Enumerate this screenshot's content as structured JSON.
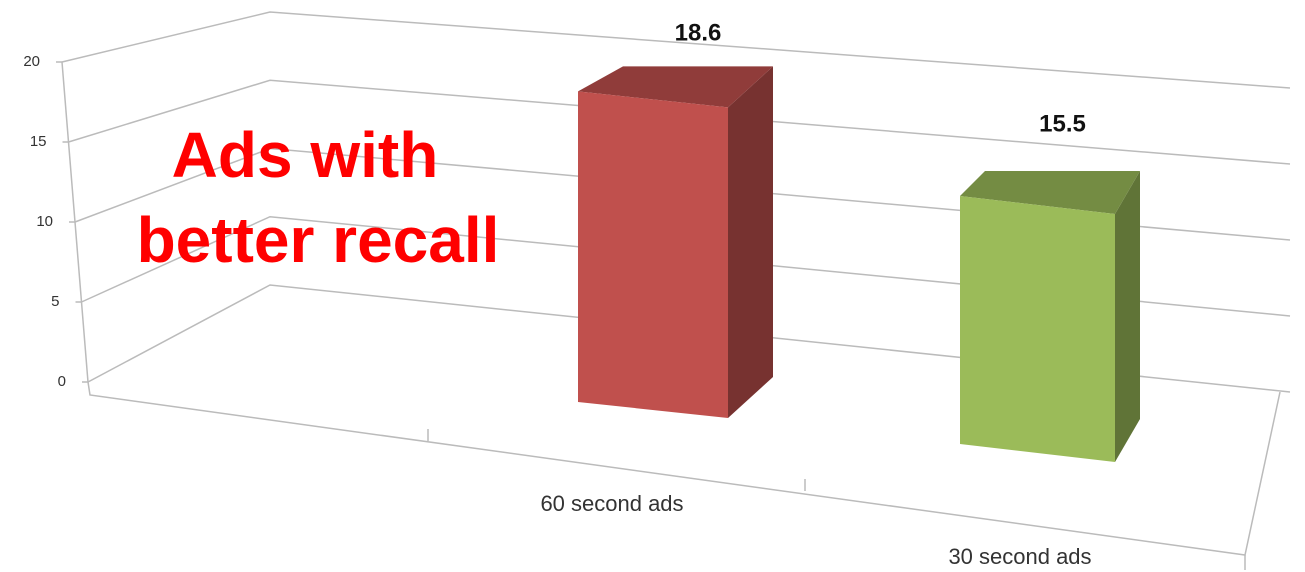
{
  "chart_data": {
    "type": "bar3d",
    "categories": [
      "60 second ads",
      "30 second ads"
    ],
    "values": [
      18.6,
      15.5
    ],
    "colors": [
      "#c0504d",
      "#9bbb59"
    ],
    "ylim": [
      0,
      20
    ],
    "yticks": [
      0,
      5,
      10,
      15,
      20
    ],
    "grid": true,
    "annotation": [
      "Ads with",
      "better recall"
    ]
  }
}
